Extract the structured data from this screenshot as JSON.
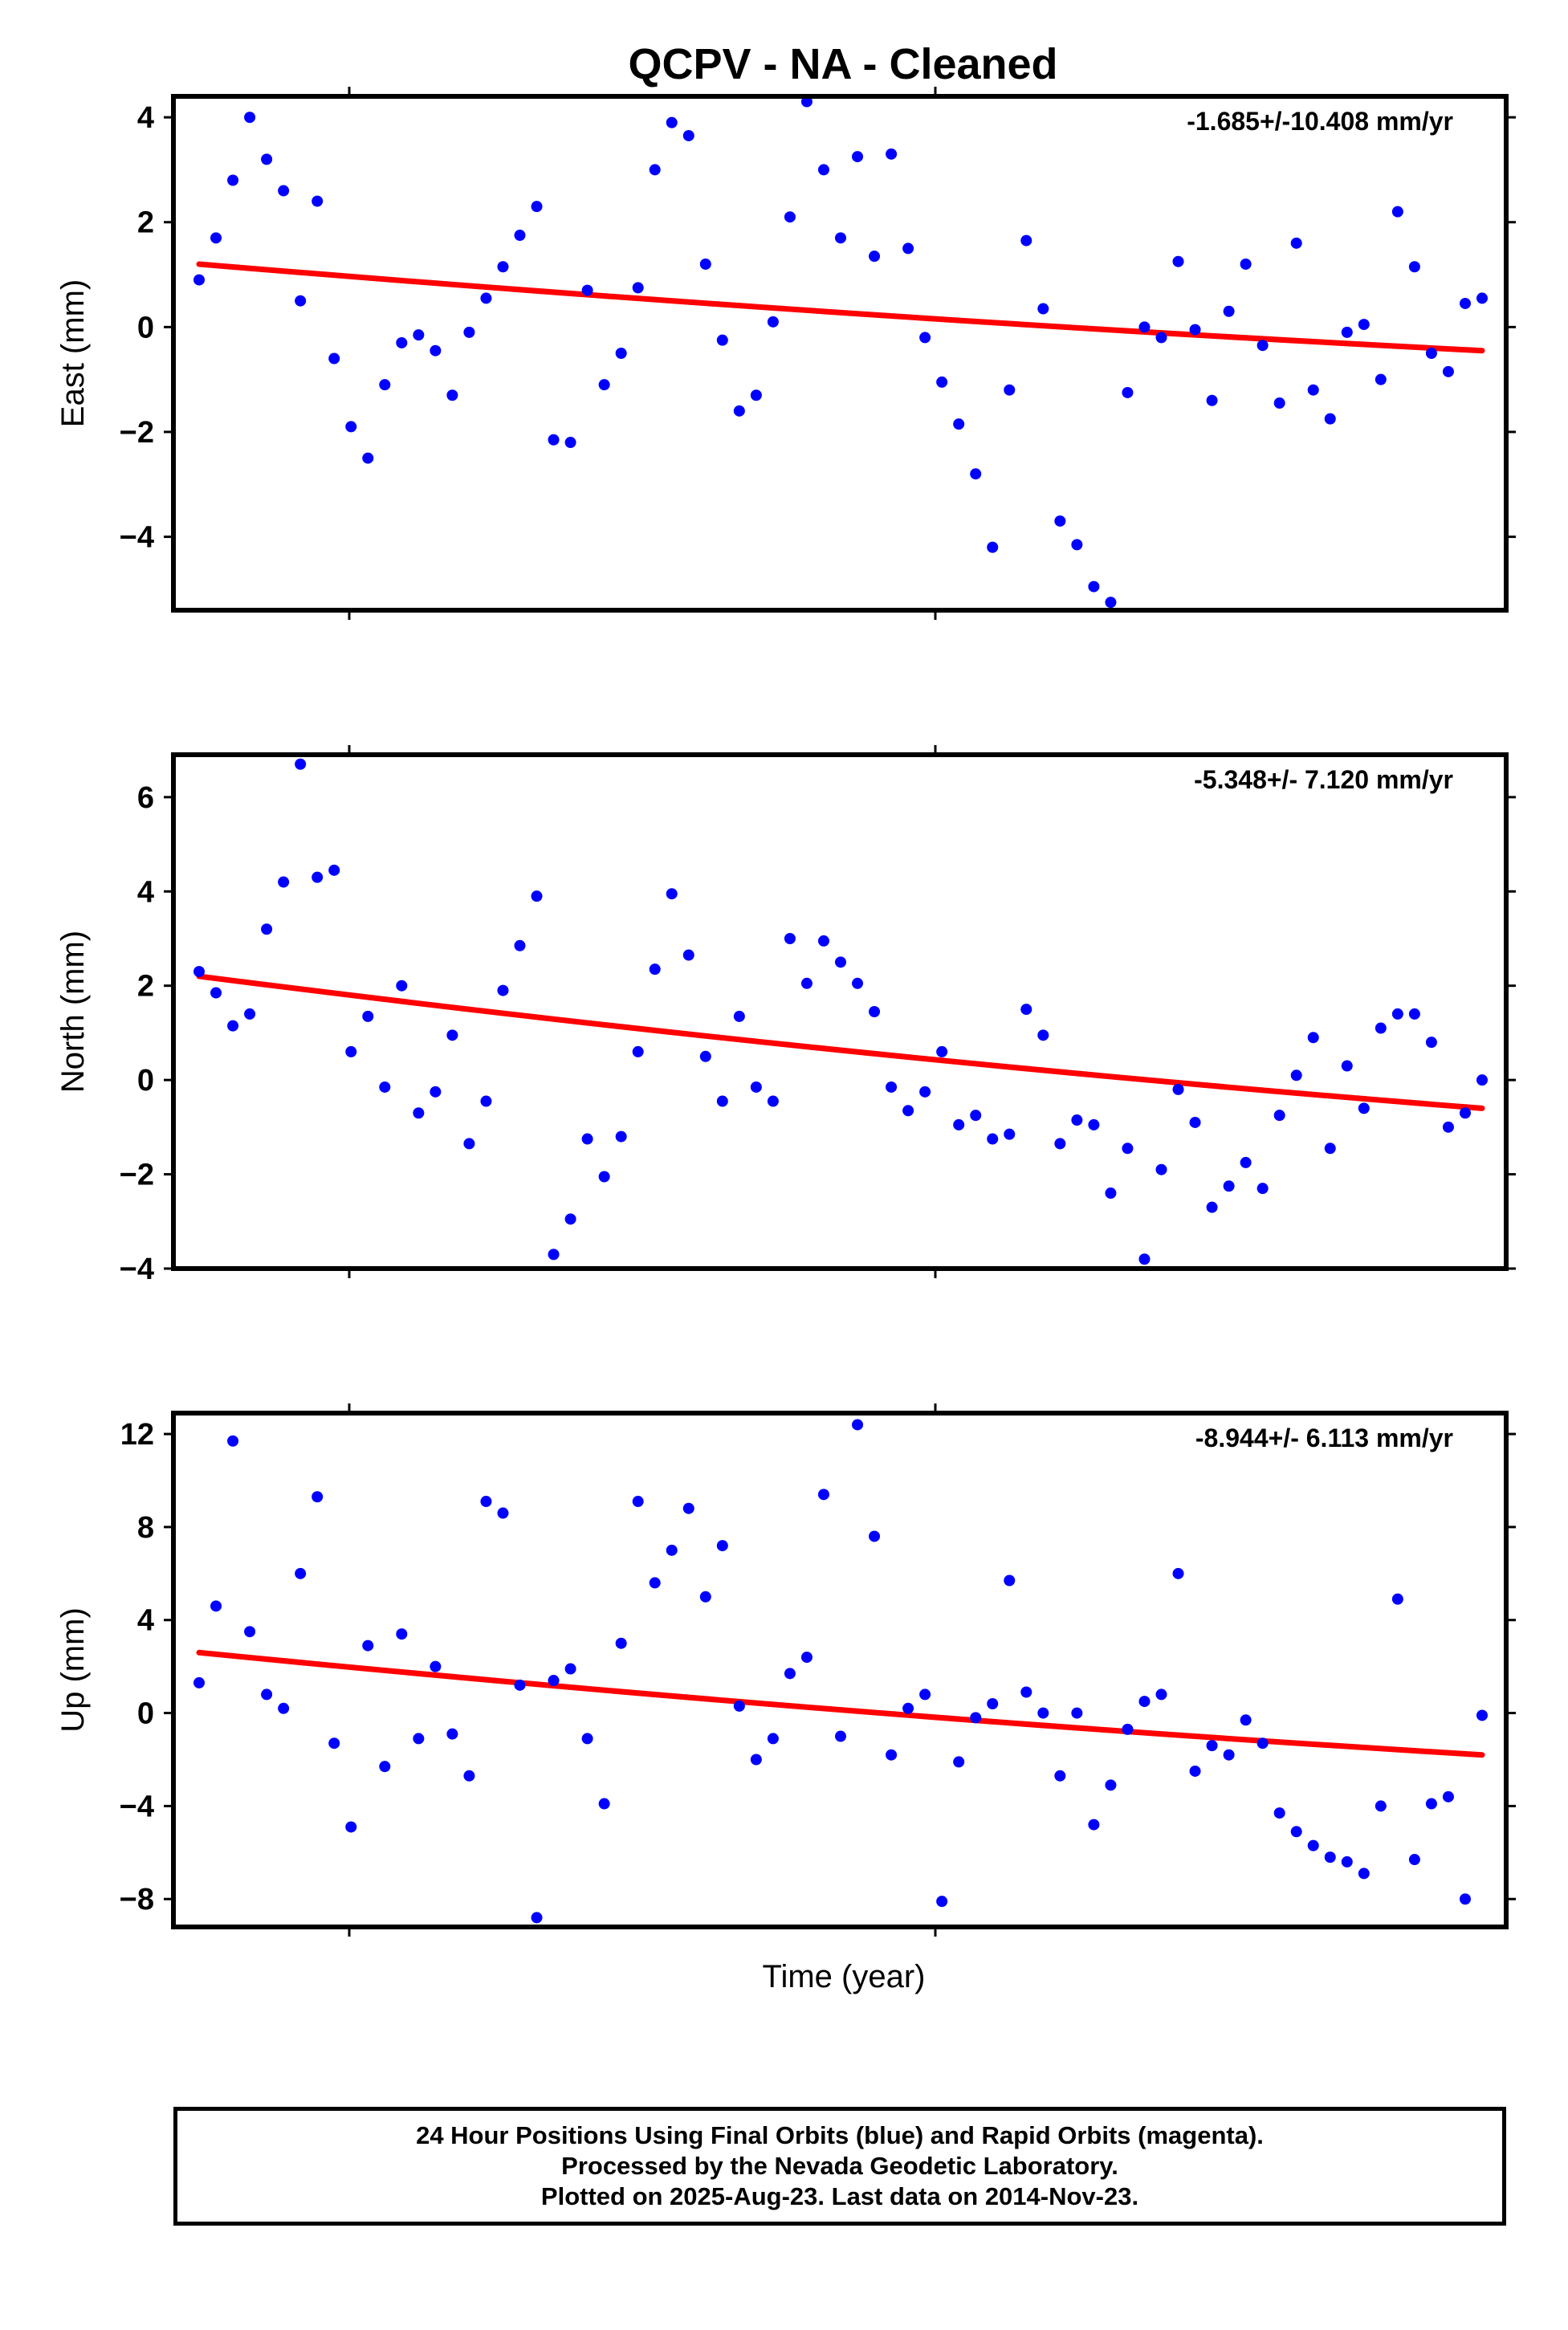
{
  "title": "QCPV  - NA - Cleaned",
  "xlabel": "Time (year)",
  "footer": {
    "line1": "24 Hour Positions Using Final Orbits (blue) and Rapid Orbits (magenta).",
    "line2": "Processed by the Nevada Geodetic Laboratory.",
    "line3": "Plotted on 2025-Aug-23. Last data on 2014-Nov-23."
  },
  "colors": {
    "points": "#0000ff",
    "fit": "#ff0000"
  },
  "chart_data": [
    {
      "type": "scatter",
      "ylabel": "East (mm)",
      "rate": "-1.685+/-10.408 mm/yr",
      "ylim": [
        -5.4,
        4.4
      ],
      "yticks": [
        4,
        2,
        0,
        -2,
        -4
      ],
      "y": [
        0.9,
        1.7,
        2.8,
        4.0,
        3.2,
        2.6,
        0.5,
        2.4,
        -0.6,
        -1.9,
        -2.5,
        -1.1,
        -0.3,
        -0.15,
        -0.45,
        -1.3,
        -0.1,
        0.55,
        1.15,
        1.75,
        2.3,
        -2.15,
        -2.2,
        0.7,
        -1.1,
        -0.5,
        0.75,
        3.0,
        3.9,
        3.65,
        1.2,
        -0.25,
        -1.6,
        -1.3,
        0.1,
        2.1,
        4.3,
        3.0,
        1.7,
        3.25,
        1.35,
        3.3,
        1.5,
        -0.2,
        -1.05,
        -1.85,
        -2.8,
        -4.2,
        -1.2,
        1.65,
        0.35,
        -3.7,
        -4.15,
        -4.95,
        -5.25,
        -1.25,
        0.0,
        -0.2,
        1.25,
        -0.05,
        -1.4,
        0.3,
        1.2,
        -0.35,
        -1.45,
        1.6,
        -1.2,
        -1.75,
        -0.1,
        0.05,
        -1.0,
        2.2,
        1.15,
        -0.5,
        -0.85,
        0.45,
        0.55
      ],
      "fit": [
        1.2,
        -0.45
      ]
    },
    {
      "type": "scatter",
      "ylabel": "North (mm)",
      "rate": "-5.348+/- 7.120 mm/yr",
      "ylim": [
        -4.0,
        6.9
      ],
      "yticks": [
        6,
        4,
        2,
        0,
        -2,
        -4
      ],
      "y": [
        2.3,
        1.85,
        1.15,
        1.4,
        3.2,
        4.2,
        6.7,
        4.3,
        4.45,
        0.6,
        1.35,
        -0.15,
        2.0,
        -0.7,
        -0.25,
        0.95,
        -1.35,
        -0.45,
        1.9,
        2.85,
        3.9,
        -3.7,
        -2.95,
        -1.25,
        -2.05,
        -1.2,
        0.6,
        2.35,
        3.95,
        2.65,
        0.5,
        -0.45,
        1.35,
        -0.15,
        -0.45,
        3.0,
        2.05,
        2.95,
        2.5,
        2.05,
        1.45,
        -0.15,
        -0.65,
        -0.25,
        0.6,
        -0.95,
        -0.75,
        -1.25,
        -1.15,
        1.5,
        0.95,
        -1.35,
        -0.85,
        -0.95,
        -2.4,
        -1.45,
        -3.8,
        -1.9,
        -0.2,
        -0.9,
        -2.7,
        -2.25,
        -1.75,
        -2.3,
        -0.75,
        0.1,
        0.9,
        -1.45,
        0.3,
        -0.6,
        1.1,
        1.4,
        1.4,
        0.8,
        -1.0,
        -0.7,
        0.0
      ],
      "fit": [
        2.2,
        -0.6
      ]
    },
    {
      "type": "scatter",
      "ylabel": "Up (mm)",
      "rate": "-8.944+/- 6.113 mm/yr",
      "ylim": [
        -9.2,
        12.9
      ],
      "yticks": [
        12,
        8,
        4,
        0,
        -4,
        -8
      ],
      "y": [
        1.3,
        4.6,
        11.7,
        3.5,
        0.8,
        0.2,
        6.0,
        9.3,
        -1.3,
        -4.9,
        2.9,
        -2.3,
        3.4,
        -1.1,
        2.0,
        -0.9,
        -2.7,
        9.1,
        8.6,
        1.2,
        -8.8,
        1.4,
        1.9,
        -1.1,
        -3.9,
        3.0,
        9.1,
        5.6,
        7.0,
        8.8,
        5.0,
        7.2,
        0.3,
        -2.0,
        -1.1,
        1.7,
        2.4,
        9.4,
        -1.0,
        12.4,
        7.6,
        -1.8,
        0.2,
        0.8,
        -8.1,
        -2.1,
        -0.2,
        0.4,
        5.7,
        0.9,
        0.0,
        -2.7,
        0.0,
        -4.8,
        -3.1,
        -0.7,
        0.5,
        0.8,
        6.0,
        -2.5,
        -1.4,
        -1.8,
        -0.3,
        -1.3,
        -4.3,
        -5.1,
        -5.7,
        -6.2,
        -6.4,
        -6.9,
        -4.0,
        4.9,
        -6.3,
        -3.9,
        -3.6,
        -8.0,
        -0.1
      ],
      "fit": [
        2.6,
        -1.8
      ]
    }
  ]
}
